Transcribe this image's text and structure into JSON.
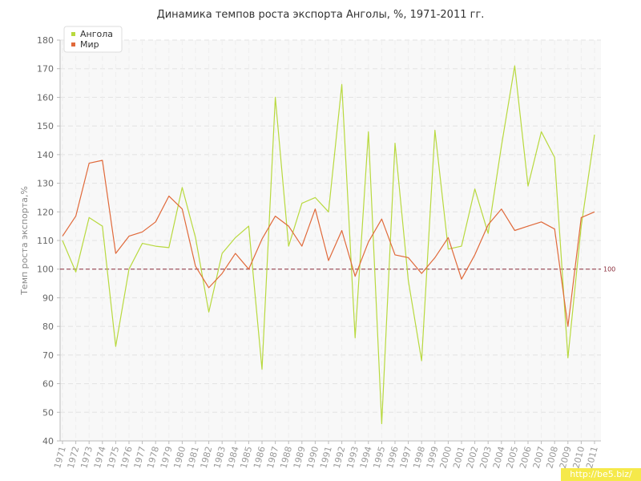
{
  "chart_data": {
    "type": "line",
    "title": "Динамика темпов роста экспорта Анголы, %, 1971-2011 гг.",
    "xlabel": "",
    "ylabel": "Темп роста экспорта,%",
    "ylim": [
      40,
      180
    ],
    "yticks": [
      40,
      50,
      60,
      70,
      80,
      90,
      100,
      110,
      120,
      130,
      140,
      150,
      160,
      170,
      180
    ],
    "grid": true,
    "legend_position": "top-left",
    "reference_line": {
      "value": 100,
      "label": "100",
      "color": "#8b2e3c"
    },
    "categories": [
      "1971",
      "1972",
      "1973",
      "1974",
      "1975",
      "1976",
      "1977",
      "1978",
      "1979",
      "1980",
      "1981",
      "1982",
      "1983",
      "1984",
      "1985",
      "1986",
      "1987",
      "1988",
      "1989",
      "1990",
      "1991",
      "1992",
      "1993",
      "1994",
      "1995",
      "1996",
      "1997",
      "1998",
      "1999",
      "2000",
      "2001",
      "2002",
      "2003",
      "2004",
      "2005",
      "2006",
      "2007",
      "2008",
      "2009",
      "2010",
      "2011"
    ],
    "series": [
      {
        "name": "Ангола",
        "color": "#b8d93e",
        "values": [
          110,
          99,
          118,
          115,
          73,
          100,
          109,
          108,
          107.5,
          128.5,
          111,
          85,
          105.5,
          111,
          115,
          65,
          160,
          108,
          123,
          125,
          120,
          164.5,
          76,
          148,
          46,
          144,
          96,
          68,
          148.5,
          107,
          108,
          128,
          112.5,
          143,
          171,
          129,
          148,
          139,
          69,
          115,
          147
        ]
      },
      {
        "name": "Мир",
        "color": "#e0693a",
        "values": [
          111.5,
          118.5,
          137,
          138,
          105.5,
          111.5,
          113,
          116.5,
          125.5,
          121,
          101,
          93.5,
          98.5,
          105.5,
          100,
          110.5,
          118.5,
          115,
          108,
          121,
          103,
          113.5,
          97.5,
          109.5,
          117.5,
          105,
          104,
          98.5,
          104,
          111,
          96.5,
          105,
          115.5,
          121,
          113.5,
          115,
          116.5,
          114,
          80,
          118,
          120
        ]
      }
    ]
  },
  "watermark": "http://be5.biz/"
}
